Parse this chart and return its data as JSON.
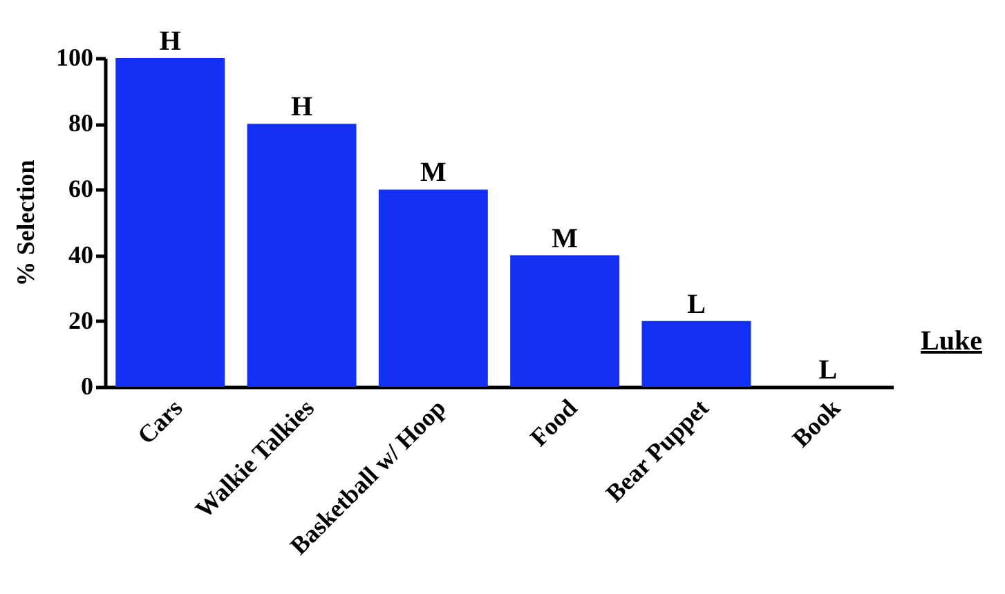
{
  "chart_data": {
    "type": "bar",
    "ylabel": "% Selection",
    "categories": [
      "Cars",
      "Walkie Talkies",
      "Basketball w/ Hoop",
      "Food",
      "Bear Puppet",
      "Book"
    ],
    "values": [
      100,
      80,
      60,
      40,
      20,
      0
    ],
    "value_labels": [
      "H",
      "H",
      "M",
      "M",
      "L",
      "L"
    ],
    "color": "#1430f5",
    "ylim": [
      0,
      100
    ],
    "yticks": [
      0,
      20,
      40,
      60,
      80,
      100
    ],
    "grid": false,
    "annotations": [
      "Luke"
    ]
  }
}
